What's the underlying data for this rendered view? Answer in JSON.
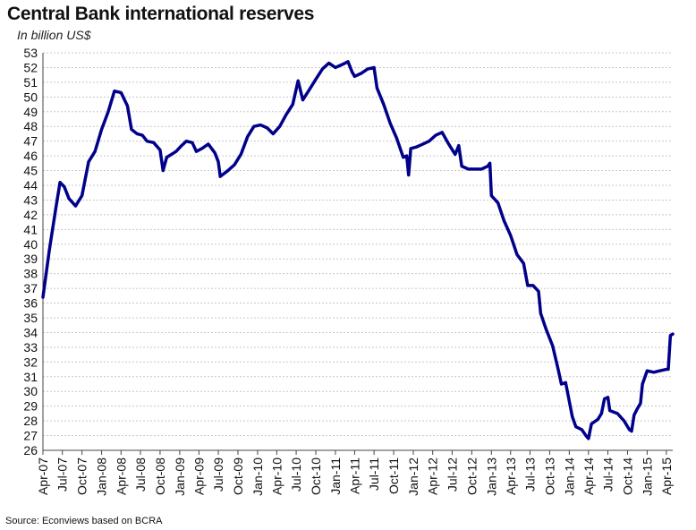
{
  "chart_data": {
    "type": "line",
    "title": "Central Bank international reserves",
    "subtitle": "In billion US$",
    "source": "Source: Econviews based on BCRA",
    "xlabel": "",
    "ylabel": "",
    "ylim": [
      26,
      53
    ],
    "yticks": [
      26,
      27,
      28,
      29,
      30,
      31,
      32,
      33,
      34,
      35,
      36,
      37,
      38,
      39,
      40,
      41,
      42,
      43,
      44,
      45,
      46,
      47,
      48,
      49,
      50,
      51,
      52,
      53
    ],
    "xlim": [
      "2007-04",
      "2015-05"
    ],
    "xticks": [
      "Apr-07",
      "Jul-07",
      "Oct-07",
      "Jan-08",
      "Apr-08",
      "Jul-08",
      "Oct-08",
      "Jan-09",
      "Apr-09",
      "Jul-09",
      "Oct-09",
      "Jan-10",
      "Apr-10",
      "Jul-10",
      "Oct-10",
      "Jan-11",
      "Apr-11",
      "Jul-11",
      "Oct-11",
      "Jan-12",
      "Apr-12",
      "Jul-12",
      "Oct-12",
      "Jan-13",
      "Apr-13",
      "Jul-13",
      "Oct-13",
      "Jan-14",
      "Apr-14",
      "Jul-14",
      "Oct-14",
      "Jan-15",
      "Apr-15"
    ],
    "grid": true,
    "series": [
      {
        "color": "#00008b",
        "points": [
          [
            "2007-04-01",
            36.4
          ],
          [
            "2007-05-01",
            39.6
          ],
          [
            "2007-06-01",
            42.5
          ],
          [
            "2007-06-20",
            44.2
          ],
          [
            "2007-07-10",
            43.9
          ],
          [
            "2007-08-01",
            43.1
          ],
          [
            "2007-09-01",
            42.6
          ],
          [
            "2007-10-01",
            43.3
          ],
          [
            "2007-11-01",
            45.6
          ],
          [
            "2007-12-01",
            46.3
          ],
          [
            "2008-01-01",
            47.8
          ],
          [
            "2008-02-01",
            49.0
          ],
          [
            "2008-03-01",
            50.4
          ],
          [
            "2008-04-01",
            50.3
          ],
          [
            "2008-05-01",
            49.4
          ],
          [
            "2008-05-20",
            47.8
          ],
          [
            "2008-06-15",
            47.5
          ],
          [
            "2008-07-10",
            47.4
          ],
          [
            "2008-08-01",
            47.0
          ],
          [
            "2008-09-01",
            46.9
          ],
          [
            "2008-10-01",
            46.4
          ],
          [
            "2008-10-15",
            45.0
          ],
          [
            "2008-11-01",
            45.9
          ],
          [
            "2008-12-15",
            46.3
          ],
          [
            "2009-01-10",
            46.7
          ],
          [
            "2009-02-01",
            47.0
          ],
          [
            "2009-03-01",
            46.9
          ],
          [
            "2009-03-20",
            46.3
          ],
          [
            "2009-04-15",
            46.5
          ],
          [
            "2009-05-15",
            46.8
          ],
          [
            "2009-06-15",
            46.2
          ],
          [
            "2009-07-01",
            45.6
          ],
          [
            "2009-07-10",
            44.6
          ],
          [
            "2009-08-15",
            45.0
          ],
          [
            "2009-09-15",
            45.4
          ],
          [
            "2009-10-15",
            46.1
          ],
          [
            "2009-11-15",
            47.3
          ],
          [
            "2009-12-15",
            48.0
          ],
          [
            "2010-01-15",
            48.1
          ],
          [
            "2010-02-15",
            47.9
          ],
          [
            "2010-03-15",
            47.5
          ],
          [
            "2010-04-15",
            48.0
          ],
          [
            "2010-05-15",
            48.8
          ],
          [
            "2010-06-15",
            49.5
          ],
          [
            "2010-07-10",
            51.1
          ],
          [
            "2010-08-01",
            49.8
          ],
          [
            "2010-09-01",
            50.5
          ],
          [
            "2010-10-01",
            51.2
          ],
          [
            "2010-11-01",
            51.9
          ],
          [
            "2010-12-01",
            52.3
          ],
          [
            "2011-01-01",
            52.0
          ],
          [
            "2011-02-01",
            52.2
          ],
          [
            "2011-03-01",
            52.4
          ],
          [
            "2011-03-20",
            51.7
          ],
          [
            "2011-04-01",
            51.4
          ],
          [
            "2011-05-01",
            51.6
          ],
          [
            "2011-06-01",
            51.9
          ],
          [
            "2011-07-01",
            52.0
          ],
          [
            "2011-07-15",
            50.6
          ],
          [
            "2011-08-15",
            49.5
          ],
          [
            "2011-09-15",
            48.2
          ],
          [
            "2011-10-15",
            47.2
          ],
          [
            "2011-11-15",
            45.9
          ],
          [
            "2011-12-01",
            46.0
          ],
          [
            "2011-12-10",
            44.7
          ],
          [
            "2011-12-20",
            46.5
          ],
          [
            "2012-01-15",
            46.6
          ],
          [
            "2012-02-15",
            46.8
          ],
          [
            "2012-03-15",
            47.0
          ],
          [
            "2012-04-15",
            47.4
          ],
          [
            "2012-05-15",
            47.6
          ],
          [
            "2012-06-15",
            46.8
          ],
          [
            "2012-07-15",
            46.1
          ],
          [
            "2012-08-01",
            46.7
          ],
          [
            "2012-08-15",
            45.3
          ],
          [
            "2012-09-15",
            45.1
          ],
          [
            "2012-10-15",
            45.1
          ],
          [
            "2012-11-15",
            45.1
          ],
          [
            "2012-12-15",
            45.3
          ],
          [
            "2012-12-25",
            45.5
          ],
          [
            "2013-01-01",
            43.3
          ],
          [
            "2013-02-01",
            42.8
          ],
          [
            "2013-03-01",
            41.6
          ],
          [
            "2013-04-01",
            40.6
          ],
          [
            "2013-05-01",
            39.3
          ],
          [
            "2013-06-01",
            38.7
          ],
          [
            "2013-06-20",
            37.2
          ],
          [
            "2013-07-15",
            37.2
          ],
          [
            "2013-08-10",
            36.8
          ],
          [
            "2013-08-20",
            35.3
          ],
          [
            "2013-09-15",
            34.2
          ],
          [
            "2013-10-15",
            33.1
          ],
          [
            "2013-11-10",
            31.5
          ],
          [
            "2013-11-25",
            30.5
          ],
          [
            "2013-12-15",
            30.6
          ],
          [
            "2014-01-15",
            28.3
          ],
          [
            "2014-02-01",
            27.6
          ],
          [
            "2014-03-01",
            27.4
          ],
          [
            "2014-03-20",
            27.0
          ],
          [
            "2014-04-01",
            26.8
          ],
          [
            "2014-04-15",
            27.8
          ],
          [
            "2014-05-15",
            28.1
          ],
          [
            "2014-06-01",
            28.5
          ],
          [
            "2014-06-15",
            29.5
          ],
          [
            "2014-07-01",
            29.6
          ],
          [
            "2014-07-10",
            28.7
          ],
          [
            "2014-08-15",
            28.5
          ],
          [
            "2014-09-15",
            28.0
          ],
          [
            "2014-10-10",
            27.4
          ],
          [
            "2014-10-20",
            27.3
          ],
          [
            "2014-11-01",
            28.4
          ],
          [
            "2014-11-15",
            28.8
          ],
          [
            "2014-12-01",
            29.2
          ],
          [
            "2014-12-10",
            30.5
          ],
          [
            "2015-01-01",
            31.4
          ],
          [
            "2015-02-01",
            31.3
          ],
          [
            "2015-03-01",
            31.4
          ],
          [
            "2015-04-01",
            31.5
          ],
          [
            "2015-04-10",
            31.5
          ],
          [
            "2015-04-20",
            33.8
          ],
          [
            "2015-05-01",
            33.9
          ]
        ]
      }
    ]
  }
}
